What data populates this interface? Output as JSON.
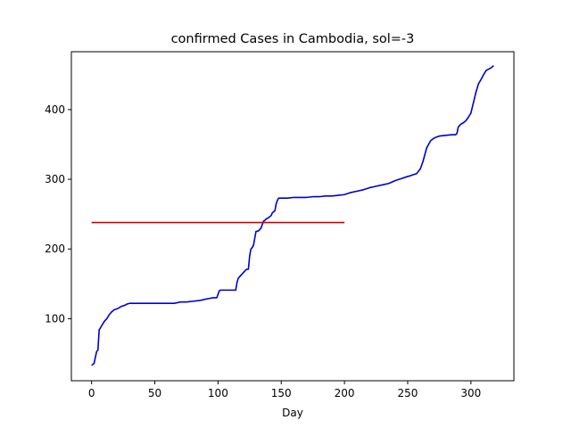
{
  "chart_data": {
    "type": "line",
    "title": "confirmed Cases in Cambodia, sol=-3",
    "xlabel": "Day",
    "ylabel": "",
    "xlim": [
      -16,
      334
    ],
    "ylim": [
      11,
      483
    ],
    "xticks": [
      0,
      50,
      100,
      150,
      200,
      250,
      300
    ],
    "yticks": [
      100,
      200,
      300,
      400
    ],
    "grid": false,
    "legend": "none",
    "series": [
      {
        "color": "#0000cc",
        "x": [
          0,
          2,
          3,
          4,
          5,
          6,
          8,
          10,
          12,
          14,
          16,
          18,
          20,
          22,
          24,
          26,
          28,
          30,
          40,
          50,
          60,
          65,
          68,
          70,
          75,
          80,
          85,
          88,
          90,
          93,
          96,
          99,
          100,
          101,
          102,
          105,
          110,
          114,
          115,
          116,
          118,
          120,
          122,
          123,
          124,
          125,
          126,
          127,
          128,
          129,
          130,
          132,
          134,
          136,
          137,
          138,
          140,
          142,
          143,
          145,
          146,
          147,
          148,
          150,
          155,
          160,
          165,
          170,
          175,
          180,
          185,
          190,
          195,
          200,
          205,
          210,
          215,
          220,
          225,
          230,
          235,
          240,
          245,
          250,
          252,
          255,
          257,
          260,
          262,
          265,
          268,
          270,
          272,
          275,
          280,
          285,
          288,
          289,
          290,
          292,
          294,
          296,
          298,
          300,
          302,
          304,
          306,
          308,
          310,
          312,
          314,
          316,
          318
        ],
        "values": [
          33,
          36,
          45,
          53,
          55,
          84,
          90,
          96,
          100,
          106,
          110,
          113,
          114,
          116,
          118,
          119,
          121,
          122,
          122,
          122,
          122,
          122,
          123,
          124,
          124,
          125,
          126,
          127,
          128,
          129,
          130,
          130,
          135,
          140,
          141,
          141,
          141,
          141,
          152,
          158,
          162,
          166,
          170,
          171,
          171,
          190,
          200,
          202,
          205,
          215,
          225,
          226,
          230,
          240,
          241,
          243,
          245,
          248,
          252,
          255,
          265,
          270,
          273,
          273,
          273,
          274,
          274,
          274,
          275,
          275,
          276,
          276,
          277,
          278,
          281,
          283,
          285,
          288,
          290,
          292,
          294,
          298,
          301,
          304,
          305,
          307,
          308,
          315,
          325,
          345,
          355,
          358,
          360,
          362,
          363,
          364,
          364,
          366,
          375,
          379,
          381,
          384,
          389,
          395,
          410,
          425,
          437,
          443,
          450,
          456,
          458,
          460,
          463
        ]
      },
      {
        "color": "#cc0000",
        "x": [
          0,
          200
        ],
        "values": [
          238,
          238
        ]
      }
    ]
  }
}
